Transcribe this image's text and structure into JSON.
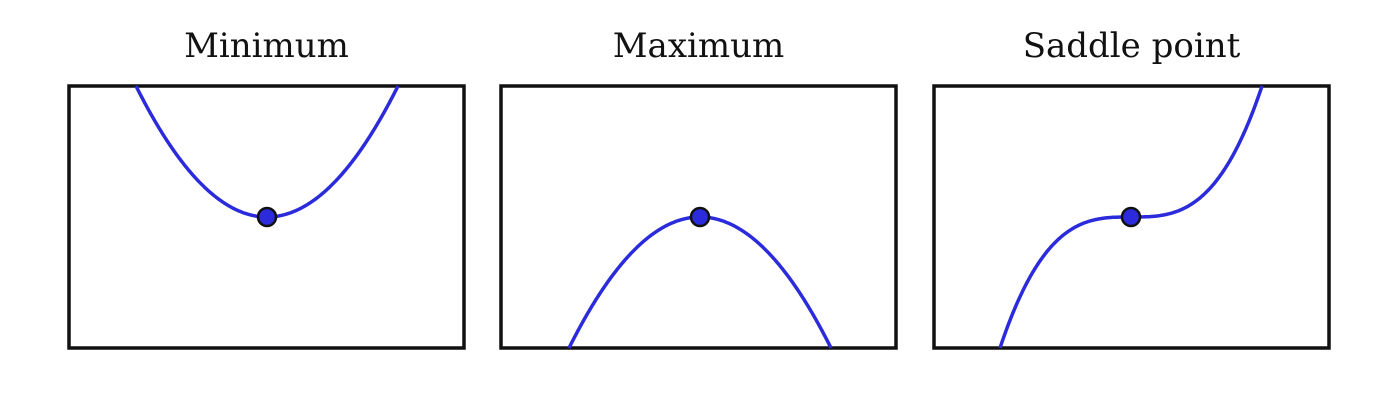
{
  "figure": {
    "panels": [
      {
        "title": "Minimum",
        "kind": "minimum"
      },
      {
        "title": "Maximum",
        "kind": "maximum"
      },
      {
        "title": "Saddle point",
        "kind": "saddle"
      }
    ]
  },
  "colors": {
    "curve": "#2b2bdc",
    "point_fill": "#2b2bdc",
    "point_stroke": "#111111",
    "frame": "#111111",
    "background": "#ffffff"
  }
}
